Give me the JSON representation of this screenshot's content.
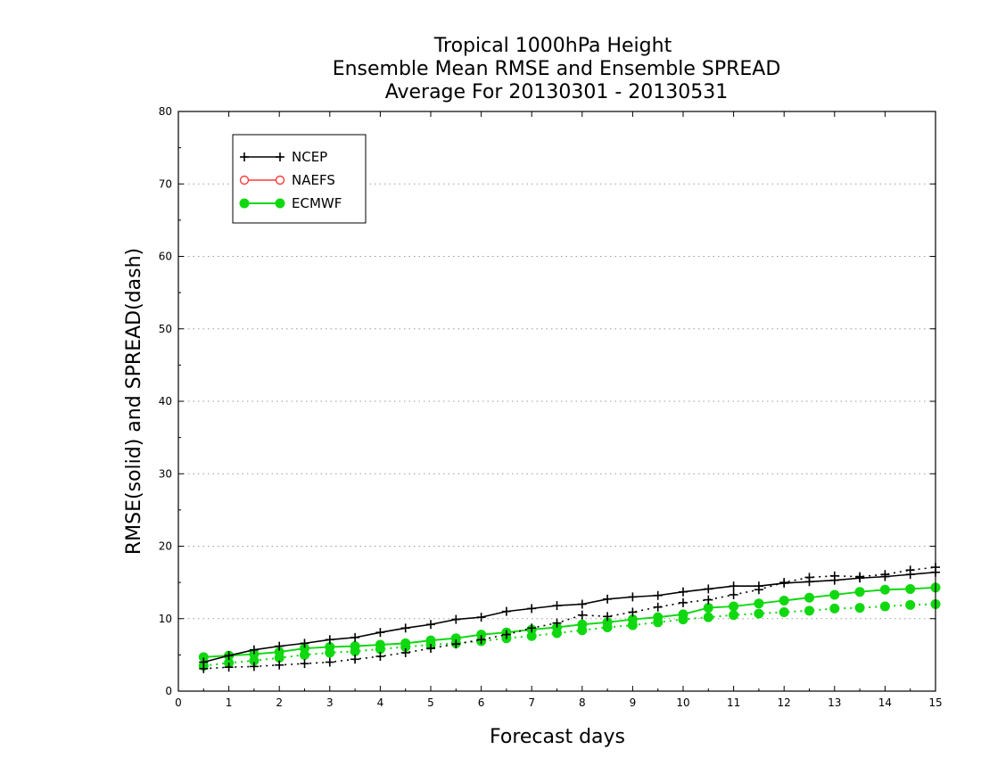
{
  "chart_data": {
    "type": "line",
    "title": [
      "Tropical 1000hPa Height",
      "Ensemble Mean RMSE and Ensemble SPREAD",
      "Average For 20130301 - 20130531"
    ],
    "xlabel": "Forecast days",
    "ylabel": "RMSE(solid) and SPREAD(dash)",
    "xlim": [
      0,
      15
    ],
    "ylim": [
      0,
      80
    ],
    "xticks": [
      "0",
      "1",
      "2",
      "3",
      "4",
      "5",
      "6",
      "7",
      "8",
      "9",
      "10",
      "11",
      "12",
      "13",
      "14",
      "15"
    ],
    "yticks": [
      "0",
      "10",
      "20",
      "30",
      "40",
      "50",
      "60",
      "70",
      "80"
    ],
    "grid": "horizontal-dotted",
    "legend_placement": "top-left",
    "x": [
      0.5,
      1,
      1.5,
      2,
      2.5,
      3,
      3.5,
      4,
      4.5,
      5,
      5.5,
      6,
      6.5,
      7,
      7.5,
      8,
      8.5,
      9,
      9.5,
      10,
      10.5,
      11,
      11.5,
      12,
      12.5,
      13,
      13.5,
      14,
      14.5,
      15
    ],
    "series": [
      {
        "name": "NCEP",
        "color": "#000000",
        "marker": "plus",
        "rmse": [
          4.0,
          4.9,
          5.7,
          6.2,
          6.6,
          7.1,
          7.4,
          8.1,
          8.7,
          9.2,
          9.9,
          10.2,
          11.0,
          11.4,
          11.8,
          12.0,
          12.7,
          13.0,
          13.2,
          13.7,
          14.1,
          14.5,
          14.5,
          14.9,
          15.1,
          15.3,
          15.6,
          15.8,
          16.1,
          16.4
        ],
        "spread": [
          3.1,
          3.3,
          3.4,
          3.6,
          3.8,
          4.0,
          4.4,
          4.8,
          5.3,
          5.9,
          6.5,
          7.1,
          7.8,
          8.7,
          9.4,
          10.5,
          10.3,
          10.9,
          11.6,
          12.2,
          12.6,
          13.3,
          14.0,
          15.0,
          15.7,
          15.9,
          15.8,
          16.1,
          16.7,
          17.1
        ]
      },
      {
        "name": "NAEFS",
        "color": "#ff3b3b",
        "marker": "open-circle",
        "rmse": [],
        "spread": []
      },
      {
        "name": "ECMWF",
        "color": "#10d810",
        "marker": "filled-circle",
        "rmse": [
          4.7,
          4.9,
          5.1,
          5.4,
          5.9,
          6.1,
          6.2,
          6.4,
          6.6,
          7.0,
          7.3,
          7.8,
          8.1,
          8.5,
          8.8,
          9.2,
          9.5,
          9.9,
          10.2,
          10.6,
          11.5,
          11.7,
          12.1,
          12.5,
          12.9,
          13.3,
          13.7,
          14.0,
          14.1,
          14.3
        ],
        "spread": [
          3.5,
          3.9,
          4.2,
          4.6,
          5.0,
          5.3,
          5.5,
          5.8,
          6.1,
          6.4,
          6.6,
          6.9,
          7.3,
          7.6,
          8.0,
          8.4,
          8.8,
          9.1,
          9.5,
          9.9,
          10.2,
          10.5,
          10.7,
          10.9,
          11.1,
          11.4,
          11.5,
          11.7,
          11.9,
          12.0
        ]
      }
    ]
  }
}
